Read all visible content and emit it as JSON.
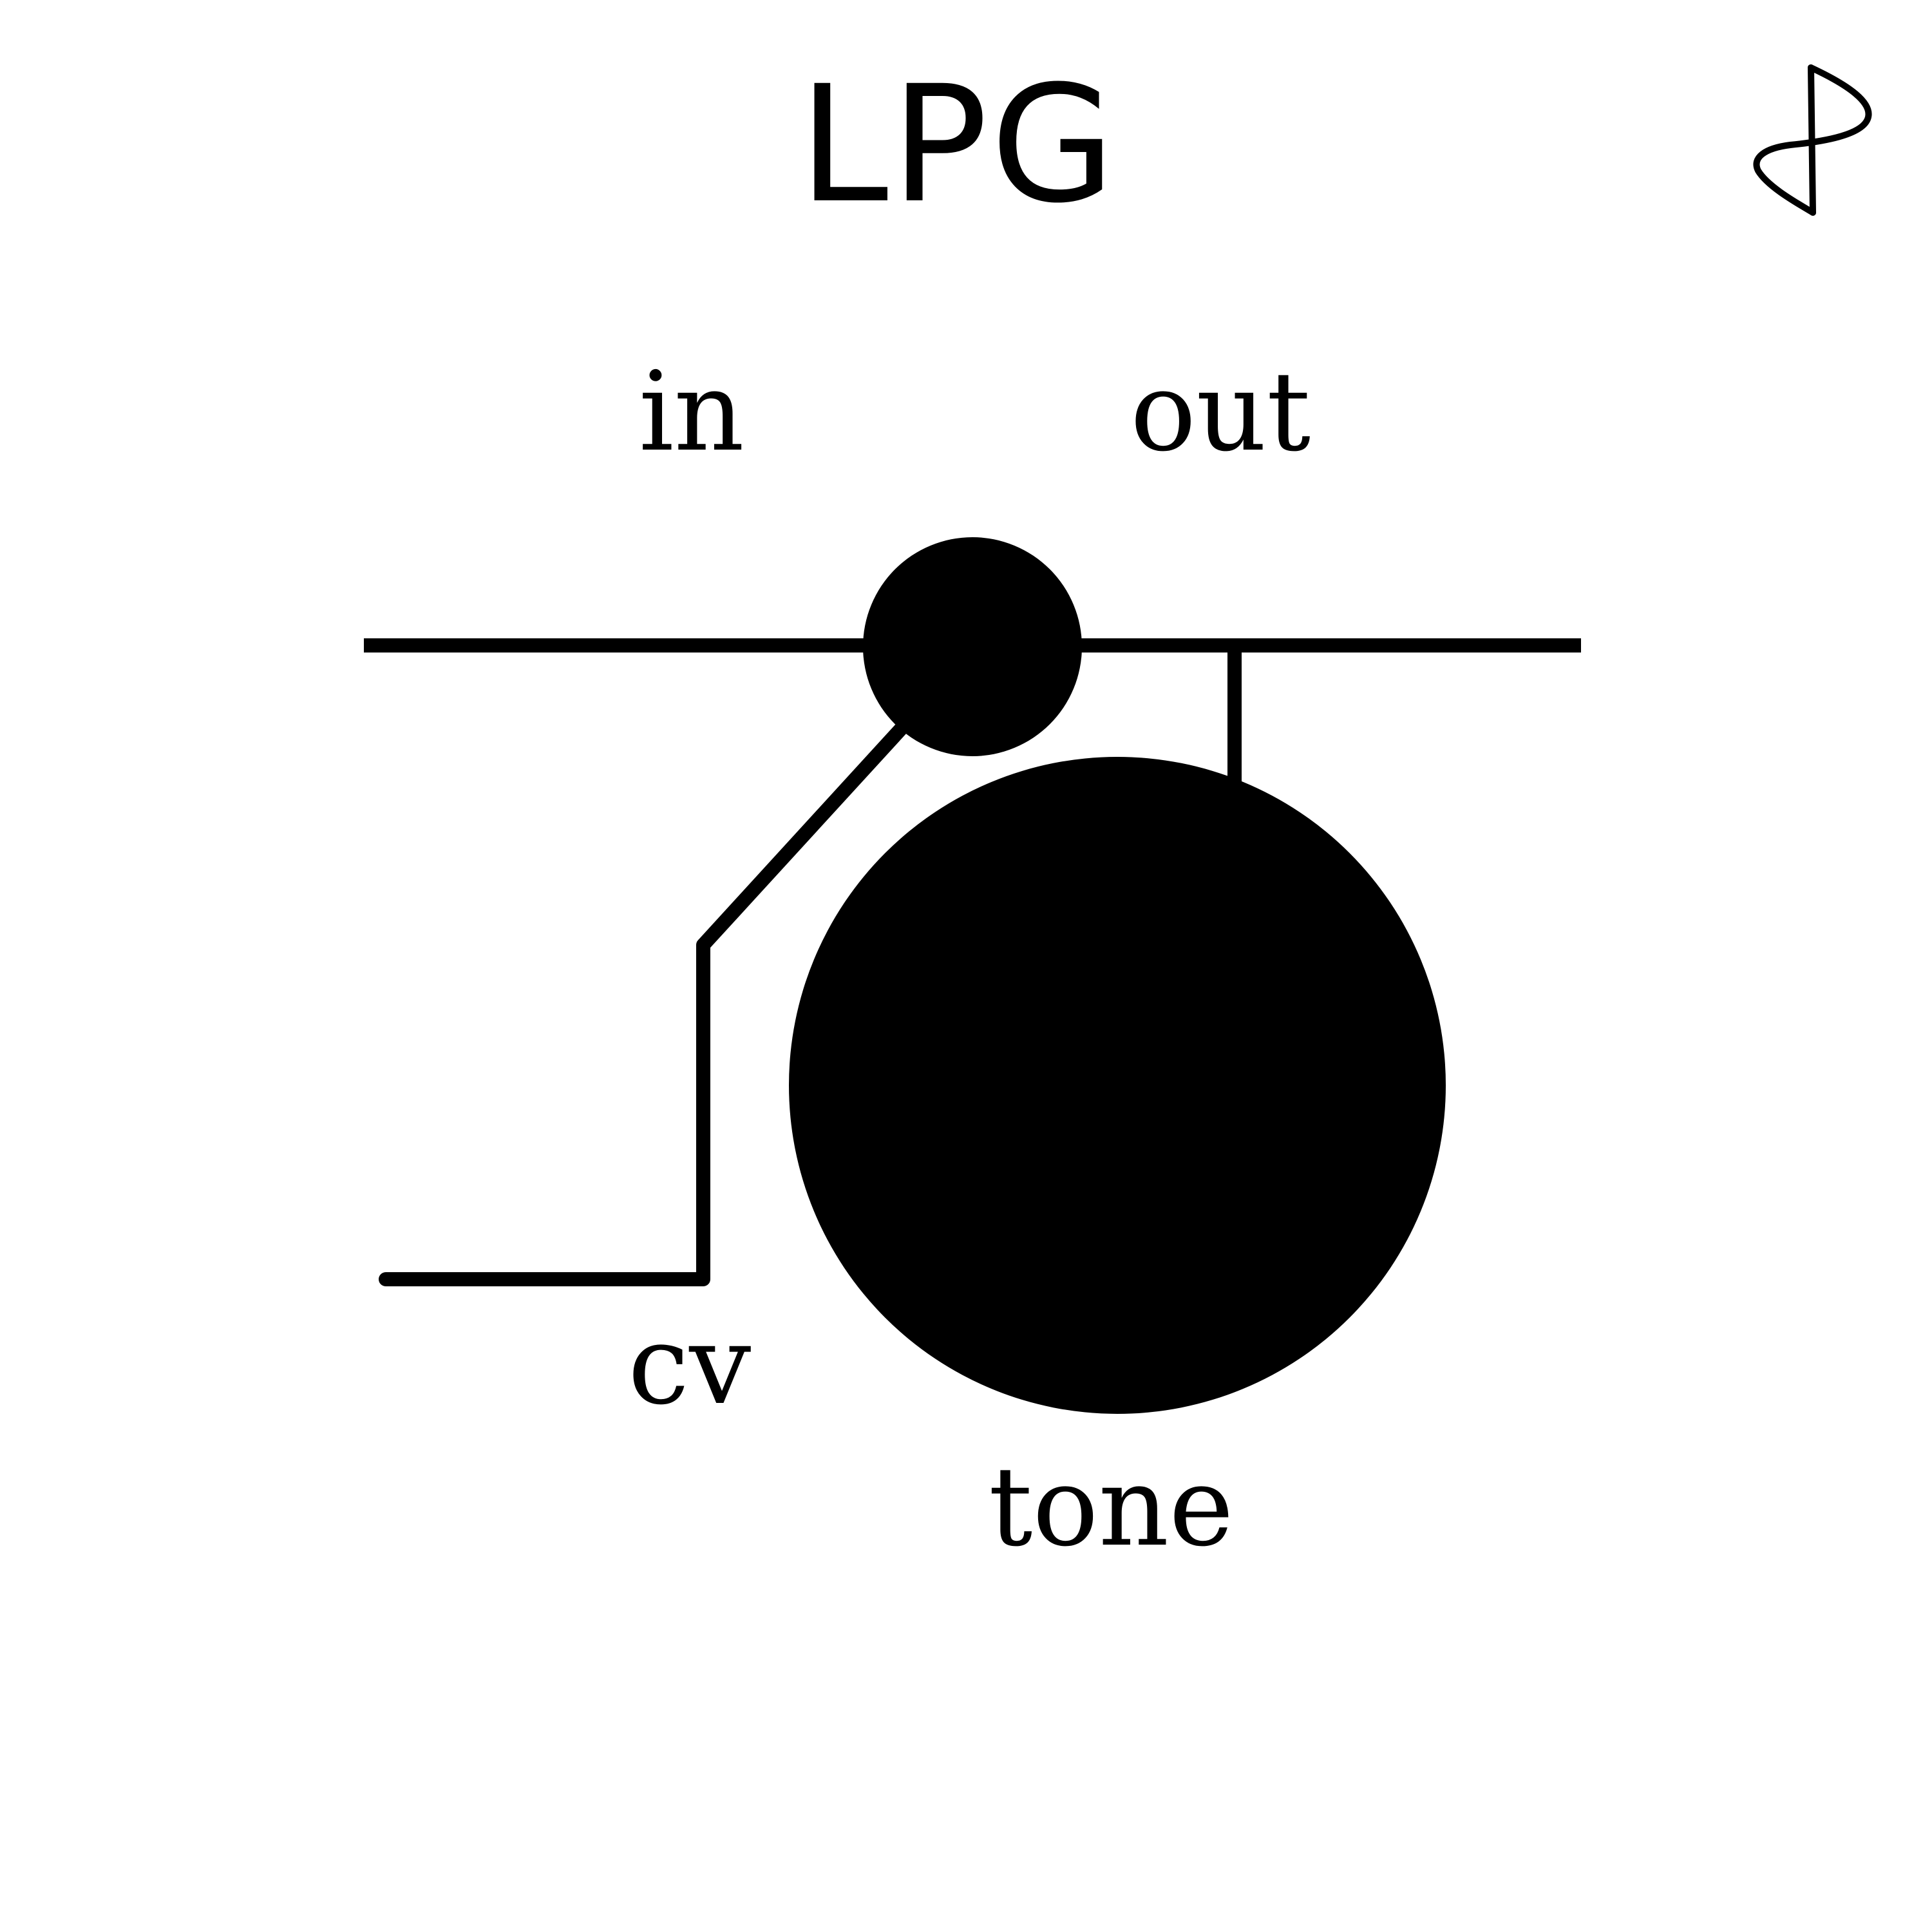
{
  "title": "LPG",
  "labels": {
    "in": "in",
    "out": "out",
    "cv": "cv",
    "tone": "tone"
  },
  "logo": {
    "icon": "brand-logo-icon",
    "shape": "vertical stroke crossed by a looping curve"
  },
  "colors": {
    "ink": "#000000",
    "background": "#ffffff"
  }
}
